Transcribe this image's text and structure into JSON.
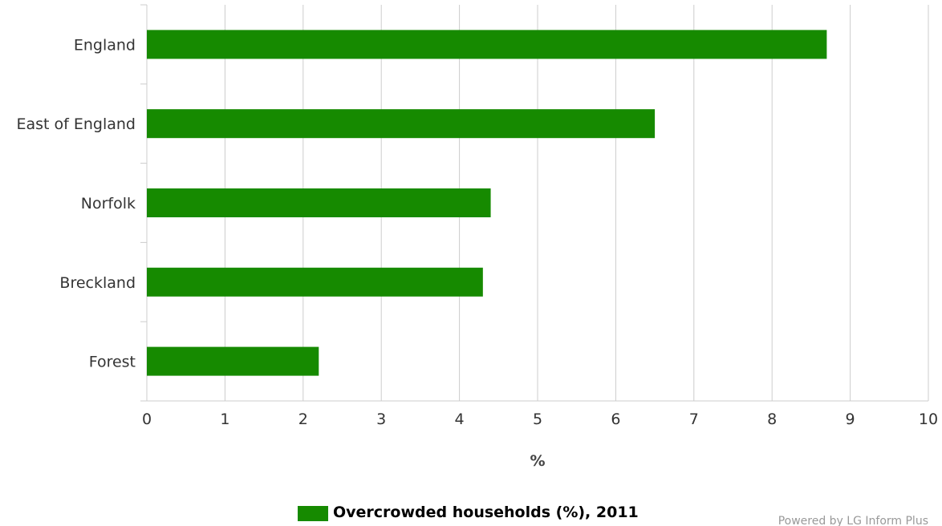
{
  "chart_data": {
    "type": "bar",
    "orientation": "horizontal",
    "categories": [
      "England",
      "East of England",
      "Norfolk",
      "Breckland",
      "Forest"
    ],
    "series": [
      {
        "name": "Overcrowded households (%), 2011",
        "values": [
          8.7,
          6.5,
          4.4,
          4.3,
          2.2
        ],
        "color": "#168a00"
      }
    ],
    "xlabel": "%",
    "ylabel": "",
    "xlim": [
      0,
      10
    ],
    "xticks": [
      "0",
      "1",
      "2",
      "3",
      "4",
      "5",
      "6",
      "7",
      "8",
      "9",
      "10"
    ],
    "grid": true,
    "legend_position": "bottom-center"
  },
  "credit": "Powered by LG Inform Plus"
}
